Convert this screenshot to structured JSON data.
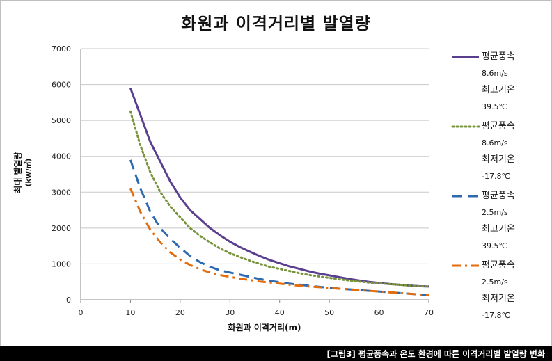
{
  "chart_data": {
    "type": "line",
    "title": "화원과 이격거리별 발열량",
    "xlabel": "화원과 이격거리(m)",
    "ylabel": "최대 발열량",
    "yunit": "(kW/㎡)",
    "xlim": [
      0,
      70
    ],
    "ylim": [
      0,
      7000
    ],
    "xticks": [
      0,
      10,
      20,
      30,
      40,
      50,
      60,
      70
    ],
    "yticks": [
      0,
      1000,
      2000,
      3000,
      4000,
      5000,
      6000,
      7000
    ],
    "grid": "horizontal",
    "legend_position": "right",
    "series": [
      {
        "name": "평균풍속 8.6m/s 최고기온 39.5℃",
        "label_lines": [
          "평균풍속",
          "8.6m/s",
          "최고기온",
          "39.5℃"
        ],
        "color": "#5b3f8f",
        "style": "solid",
        "x": [
          10,
          12,
          14,
          16,
          18,
          20,
          22,
          24,
          26,
          28,
          30,
          32,
          34,
          36,
          38,
          40,
          42,
          44,
          46,
          48,
          50,
          52,
          54,
          56,
          58,
          60,
          62,
          64,
          66,
          68,
          70
        ],
        "values": [
          5900,
          5150,
          4400,
          3850,
          3300,
          2850,
          2500,
          2250,
          2000,
          1800,
          1620,
          1470,
          1340,
          1220,
          1110,
          1020,
          930,
          860,
          790,
          730,
          680,
          630,
          580,
          540,
          500,
          470,
          440,
          420,
          400,
          380,
          370
        ]
      },
      {
        "name": "평균풍속 8.6m/s 최저기온 -17.8℃",
        "label_lines": [
          "평균풍속",
          "8.6m/s",
          "최저기온",
          "-17.8℃"
        ],
        "color": "#77933c",
        "style": "dotted",
        "x": [
          10,
          12,
          14,
          16,
          18,
          20,
          22,
          24,
          26,
          28,
          30,
          32,
          34,
          36,
          38,
          40,
          42,
          44,
          46,
          48,
          50,
          52,
          54,
          56,
          58,
          60,
          62,
          64,
          66,
          68,
          70
        ],
        "values": [
          5250,
          4300,
          3550,
          3000,
          2600,
          2300,
          2000,
          1780,
          1600,
          1430,
          1300,
          1190,
          1090,
          1000,
          920,
          860,
          800,
          740,
          690,
          650,
          610,
          570,
          540,
          510,
          480,
          460,
          440,
          420,
          400,
          380,
          370
        ]
      },
      {
        "name": "평균풍속 2.5m/s 최고기온 39.5℃",
        "label_lines": [
          "평균풍속",
          "2.5m/s",
          "최고기온",
          "39.5℃"
        ],
        "color": "#2e6ab0",
        "style": "dashed",
        "x": [
          10,
          12,
          14,
          16,
          18,
          20,
          22,
          24,
          26,
          28,
          30,
          32,
          34,
          36,
          38,
          40,
          42,
          44,
          46,
          48,
          50,
          52,
          54,
          56,
          58,
          60,
          62,
          64,
          66,
          68,
          70
        ],
        "values": [
          3900,
          3100,
          2450,
          2000,
          1700,
          1450,
          1220,
          1050,
          920,
          820,
          760,
          700,
          640,
          580,
          530,
          490,
          450,
          420,
          390,
          360,
          340,
          310,
          290,
          270,
          250,
          230,
          210,
          190,
          170,
          150,
          130
        ]
      },
      {
        "name": "평균풍속 2.5m/s 최저기온 -17.8℃",
        "label_lines": [
          "평균풍속",
          "2.5m/s",
          "최저기온",
          "-17.8℃"
        ],
        "color": "#e46c0a",
        "style": "dashdot",
        "x": [
          10,
          12,
          14,
          16,
          18,
          20,
          22,
          24,
          26,
          28,
          30,
          32,
          34,
          36,
          38,
          40,
          42,
          44,
          46,
          48,
          50,
          52,
          54,
          56,
          58,
          60,
          62,
          64,
          66,
          68,
          70
        ],
        "values": [
          3100,
          2450,
          1950,
          1600,
          1320,
          1120,
          970,
          850,
          760,
          690,
          640,
          590,
          550,
          510,
          480,
          450,
          420,
          390,
          370,
          350,
          330,
          310,
          290,
          270,
          250,
          230,
          210,
          190,
          170,
          150,
          130
        ]
      }
    ]
  },
  "caption": "[그림3] 평균풍속과 온도 환경에 따른 이격거리별 발열량 변화"
}
